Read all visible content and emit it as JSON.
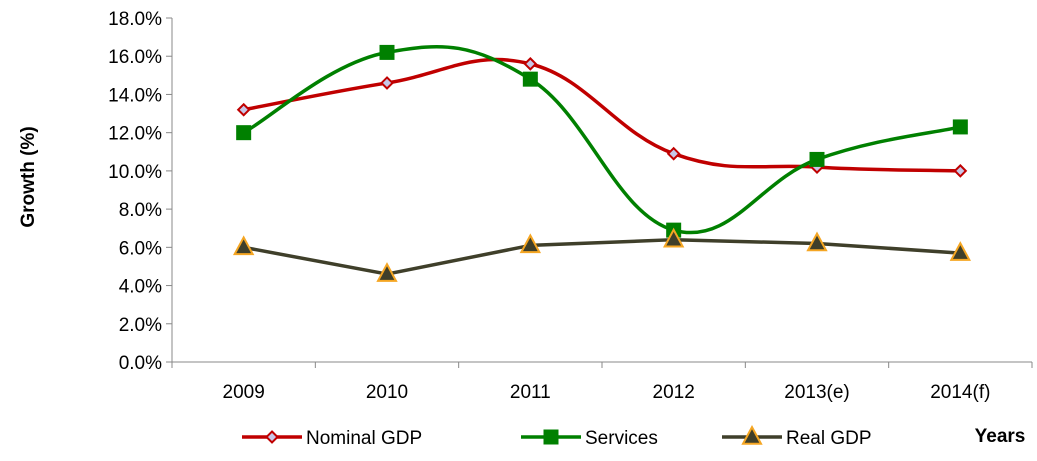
{
  "chart_data": {
    "type": "line",
    "categories": [
      "2009",
      "2010",
      "2011",
      "2012",
      "2013(e)",
      "2014(f)"
    ],
    "series": [
      {
        "name": "Nominal GDP",
        "values": [
          13.2,
          14.6,
          15.6,
          10.9,
          10.2,
          10.0
        ],
        "color": "#c00000",
        "marker": "diamond",
        "marker_fill": "#c7c7e8",
        "smooth": true
      },
      {
        "name": "Services",
        "values": [
          12.0,
          16.2,
          14.8,
          6.9,
          10.6,
          12.3
        ],
        "color": "#008000",
        "marker": "square",
        "marker_fill": "#008000",
        "smooth": true
      },
      {
        "name": "Real GDP",
        "values": [
          6.0,
          4.6,
          6.1,
          6.4,
          6.2,
          5.7
        ],
        "color": "#3f3f2a",
        "marker": "triangle",
        "marker_fill": "#f5a623",
        "smooth": false
      }
    ],
    "ylabel": "Growth (%)",
    "xlabel": "Years",
    "ylim": [
      0,
      18
    ],
    "ytick_labels": [
      "0.0%",
      "2.0%",
      "4.0%",
      "6.0%",
      "8.0%",
      "10.0%",
      "12.0%",
      "14.0%",
      "16.0%",
      "18.0%"
    ],
    "grid": false,
    "legend_position": "bottom"
  }
}
